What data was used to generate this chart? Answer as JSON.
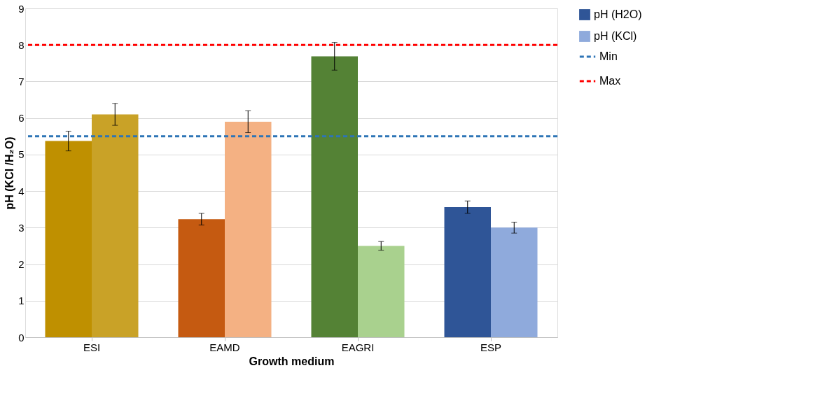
{
  "chart_data": {
    "type": "bar",
    "xlabel": "Growth medium",
    "ylabel": "pH (KCl /H₂O)",
    "categories": [
      "ESI",
      "EAMD",
      "EAGRI",
      "ESP"
    ],
    "series": [
      {
        "name": "pH (H2O)",
        "color": "#2f5597",
        "colors": [
          "#bf9000",
          "#c55a11",
          "#548235",
          "#2f5597"
        ],
        "values": [
          5.37,
          3.23,
          7.69,
          3.56
        ],
        "errors": [
          0.27,
          0.16,
          0.38,
          0.17
        ]
      },
      {
        "name": "pH (KCl)",
        "color": "#8faadc",
        "colors": [
          "#c9a227",
          "#f4b183",
          "#a9d18e",
          "#8faadc"
        ],
        "values": [
          6.1,
          5.9,
          2.5,
          3.0
        ],
        "errors": [
          0.3,
          0.3,
          0.12,
          0.15
        ]
      }
    ],
    "ref_lines": [
      {
        "axis": "y",
        "value": 5.5,
        "label": "Min",
        "color": "#2e75b6",
        "line_style": "dashed"
      },
      {
        "axis": "y",
        "value": 8,
        "label": "Max",
        "color": "#ff0000",
        "line_style": "dashed"
      }
    ],
    "ylim": [
      0,
      9
    ],
    "yticks": [
      0,
      1,
      2,
      3,
      4,
      5,
      6,
      7,
      8,
      9
    ],
    "grid": "y",
    "legend": "right"
  }
}
